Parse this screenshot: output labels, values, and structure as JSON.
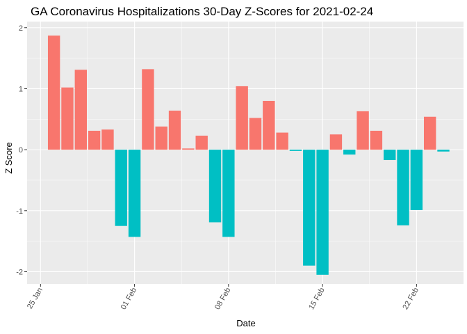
{
  "chart_data": {
    "type": "bar",
    "title": "GA Coronavirus Hospitalizations 30-Day Z-Scores for 2021-02-24",
    "xlabel": "Date",
    "ylabel": "Z Score",
    "ylim": [
      -2.2,
      2.1
    ],
    "xlim": [
      -1.0,
      31.5
    ],
    "grid": true,
    "legend": "none",
    "x_ticks": [
      {
        "pos": 0,
        "label": "25 Jan"
      },
      {
        "pos": 7,
        "label": "01 Feb"
      },
      {
        "pos": 14,
        "label": "08 Feb"
      },
      {
        "pos": 21,
        "label": "15 Feb"
      },
      {
        "pos": 28,
        "label": "22 Feb"
      }
    ],
    "y_ticks": [
      -2,
      -1,
      0,
      1,
      2
    ],
    "colors": {
      "positive": "#F8766D",
      "negative": "#00BFC4",
      "panel": "#EBEBEB",
      "grid": "#FFFFFF"
    },
    "categories": [
      "2021-01-26",
      "2021-01-27",
      "2021-01-28",
      "2021-01-29",
      "2021-01-30",
      "2021-01-31",
      "2021-02-01",
      "2021-02-02",
      "2021-02-03",
      "2021-02-04",
      "2021-02-05",
      "2021-02-06",
      "2021-02-07",
      "2021-02-08",
      "2021-02-09",
      "2021-02-10",
      "2021-02-11",
      "2021-02-12",
      "2021-02-13",
      "2021-02-14",
      "2021-02-15",
      "2021-02-16",
      "2021-02-17",
      "2021-02-18",
      "2021-02-19",
      "2021-02-20",
      "2021-02-21",
      "2021-02-22",
      "2021-02-23",
      "2021-02-24"
    ],
    "x": [
      1,
      2,
      3,
      4,
      5,
      6,
      7,
      8,
      9,
      10,
      11,
      12,
      13,
      14,
      15,
      16,
      17,
      18,
      19,
      20,
      21,
      22,
      23,
      24,
      25,
      26,
      27,
      28,
      29,
      30
    ],
    "values": [
      1.87,
      1.02,
      1.31,
      0.31,
      0.33,
      -1.25,
      -1.43,
      1.32,
      0.38,
      0.64,
      0.02,
      0.23,
      -1.19,
      -1.43,
      1.04,
      0.52,
      0.8,
      0.28,
      -0.02,
      -1.9,
      -2.05,
      0.25,
      -0.08,
      0.63,
      0.31,
      -0.17,
      -1.24,
      -0.99,
      0.54,
      -0.03
    ]
  }
}
